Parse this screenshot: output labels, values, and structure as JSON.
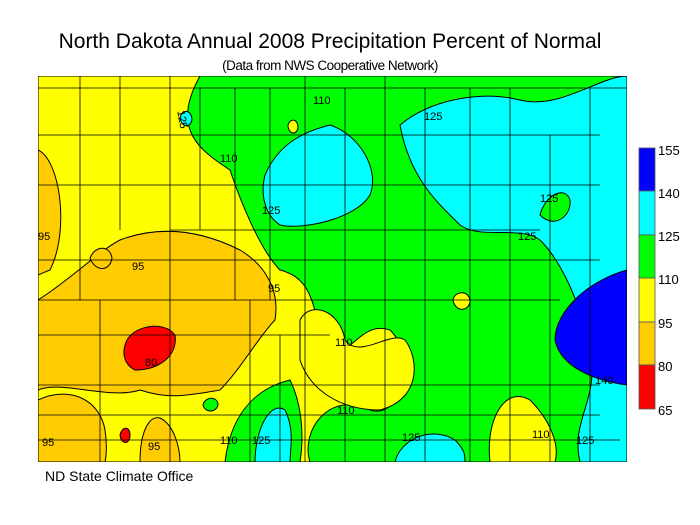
{
  "title": "North Dakota Annual 2008 Precipitation Percent of Normal",
  "subtitle": "(Data from NWS Cooperative Network)",
  "credit": "ND State Climate Office",
  "legend": {
    "ticks": [
      "155",
      "140",
      "125",
      "110",
      "95",
      "80",
      "65"
    ],
    "bins": [
      {
        "range": "140-155",
        "color": "#0000ff"
      },
      {
        "range": "125-140",
        "color": "#00ffff"
      },
      {
        "range": "110-125",
        "color": "#00ff00"
      },
      {
        "range": "95-110",
        "color": "#ffff00"
      },
      {
        "range": "80-95",
        "color": "#ffcc00"
      },
      {
        "range": "65-80",
        "color": "#ff0000"
      }
    ]
  },
  "contour_labels": [
    "125",
    "110",
    "125",
    "110",
    "125",
    "95",
    "95",
    "95",
    "125",
    "125",
    "110",
    "80",
    "140",
    "110",
    "95",
    "95",
    "110",
    "125",
    "125",
    "110",
    "125"
  ]
}
